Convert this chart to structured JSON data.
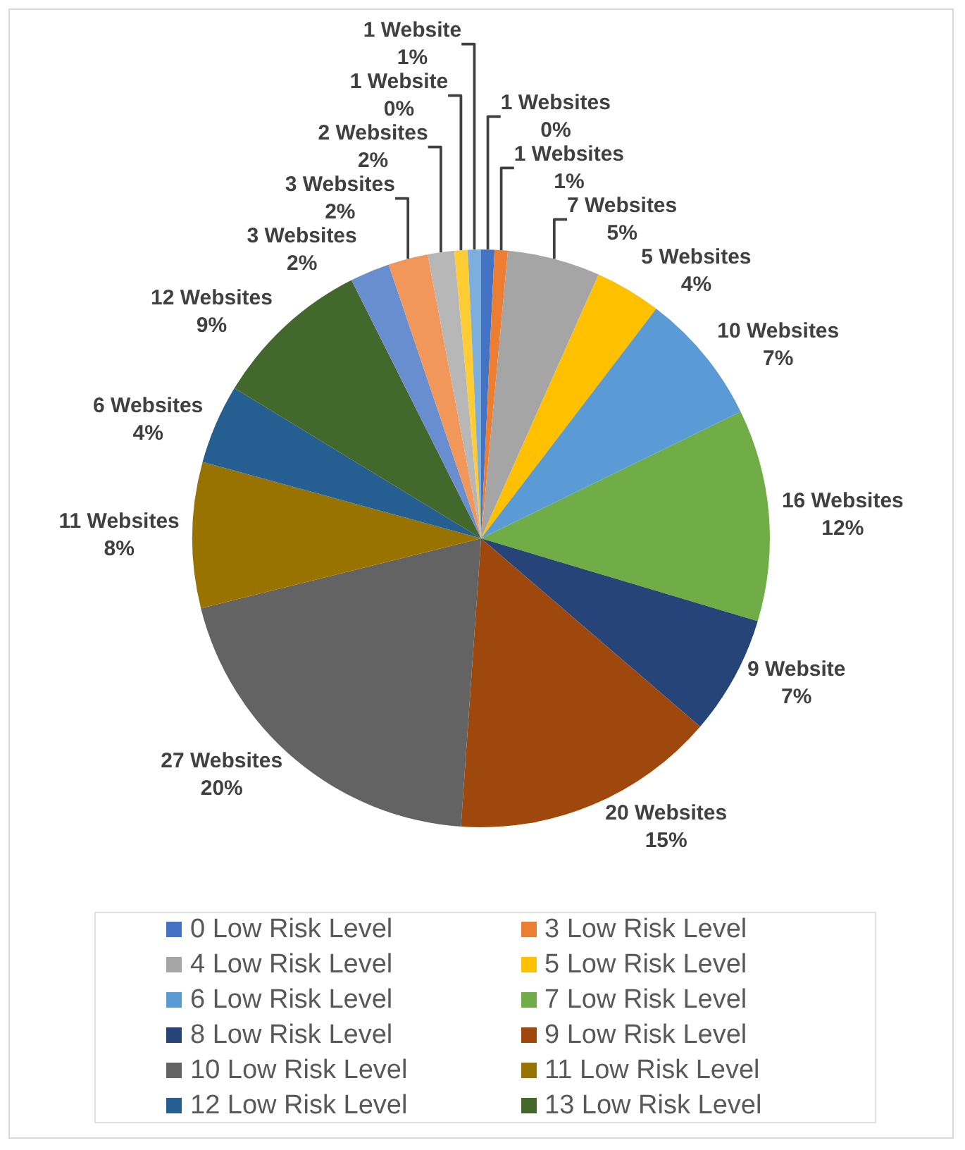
{
  "chart_data": {
    "type": "pie",
    "legend": "bottom",
    "categories": [
      "0 Low Risk Level",
      "3 Low Risk Level",
      "4 Low Risk Level",
      "5 Low Risk Level",
      "6 Low Risk Level",
      "7 Low Risk Level",
      "8 Low Risk Level",
      "9 Low Risk Level",
      "10 Low Risk Level",
      "11 Low Risk Level",
      "12 Low Risk Level",
      "13 Low Risk Level",
      null,
      null,
      null,
      null,
      null
    ],
    "values": [
      1,
      1,
      7,
      5,
      10,
      16,
      9,
      20,
      27,
      11,
      6,
      12,
      3,
      3,
      2,
      1,
      1
    ],
    "value_labels": [
      "1 Websites\n0%",
      "1 Websites\n1%",
      "7 Websites\n5%",
      "5 Websites\n4%",
      "10 Websites\n7%",
      "16 Websites\n12%",
      "9 Website\n7%",
      "20 Websites\n15%",
      "27 Websites\n20%",
      "11 Websites\n8%",
      "6 Websites\n4%",
      "12 Websites\n9%",
      "3 Websites\n2%",
      "3 Websites\n2%",
      "2 Websites\n2%",
      "1 Website\n0%",
      "1 Website\n1%"
    ],
    "colors": [
      "#4472c4",
      "#ed7d31",
      "#a5a5a5",
      "#ffc000",
      "#5b9bd5",
      "#70ad47",
      "#264478",
      "#9e480e",
      "#636363",
      "#997300",
      "#255e91",
      "#43682b",
      "#698ed0",
      "#f1975a",
      "#b7b7b7",
      "#ffcd33",
      "#7cafdd"
    ]
  }
}
